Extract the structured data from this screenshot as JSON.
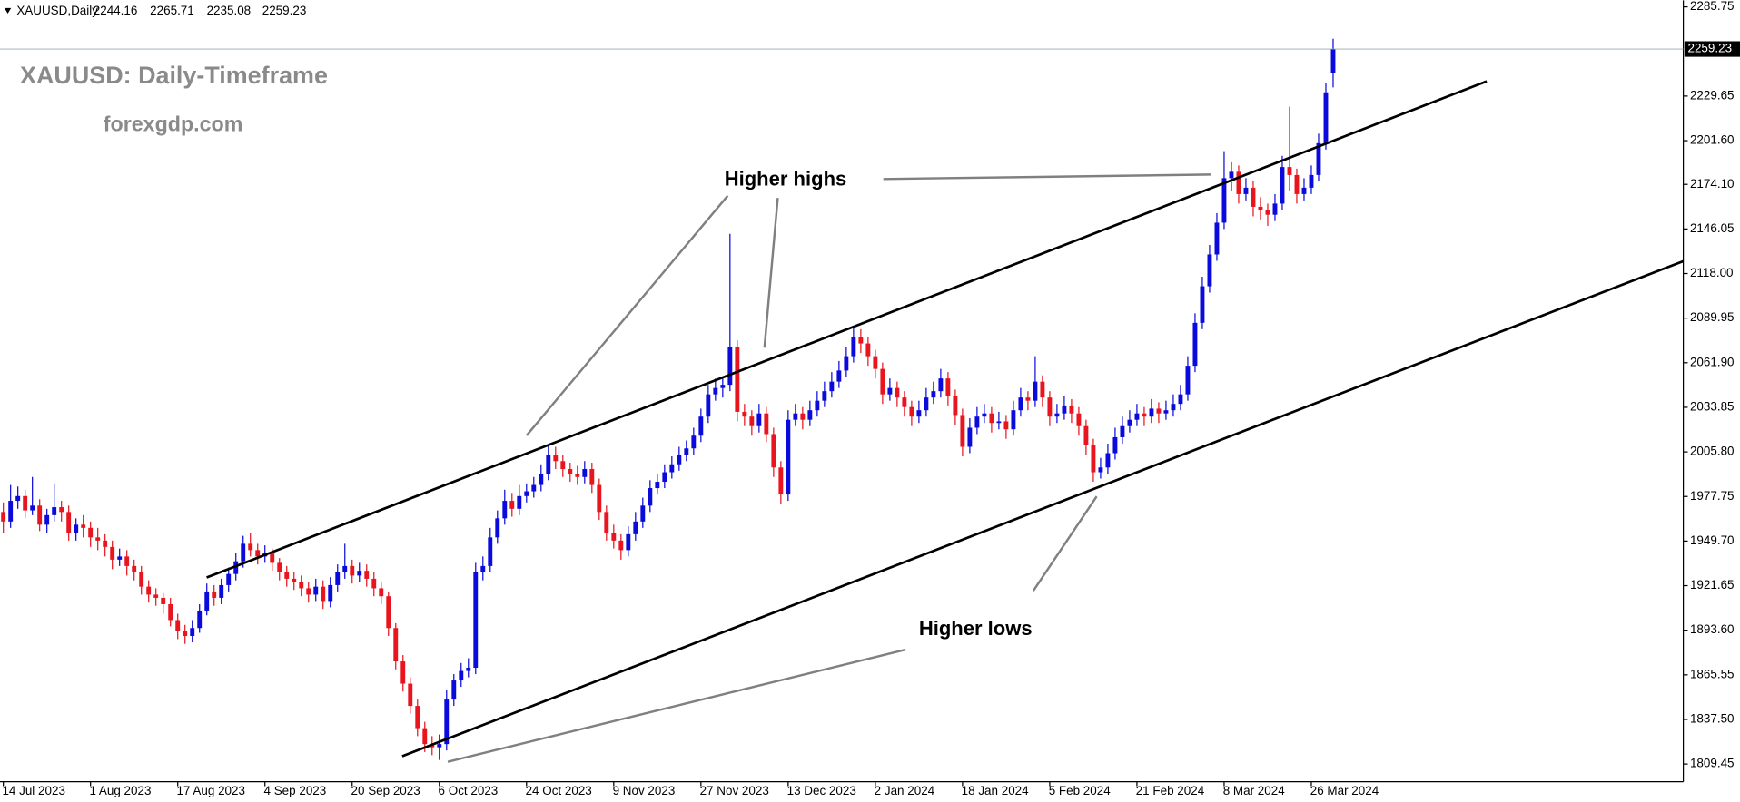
{
  "chart_data": {
    "type": "candlestick",
    "symbol": "XAUUSD,Daily",
    "title": "XAUUSD: Daily-Timeframe",
    "subtitle": "forexgdp.com",
    "annotations": [
      "Higher highs",
      "Higher lows"
    ],
    "up_color": "#0a0adc",
    "down_color": "#e8141e",
    "ylim": [
      1798.3,
      2289.9
    ],
    "yticks": [
      2285.75,
      2229.65,
      {
        "value": 2201.6,
        "label": "2201.60"
      },
      {
        "value": 2174.1,
        "label": "2174.10"
      },
      2146.05,
      {
        "value": 2118,
        "label": "2118.00"
      },
      2089.95,
      {
        "value": 2061.9,
        "label": "2061.90"
      },
      2033.85,
      {
        "value": 2005.8,
        "label": "2005.80"
      },
      1977.75,
      {
        "value": 1949.7,
        "label": "1949.70"
      },
      1921.65,
      {
        "value": 1893.6,
        "label": "1893.60"
      },
      1865.55,
      {
        "value": 1837.5,
        "label": "1837.50"
      },
      1809.45
    ],
    "categories": [
      "14 Jul 2023",
      null,
      null,
      null,
      null,
      null,
      null,
      null,
      null,
      null,
      null,
      null,
      "1 Aug 2023",
      null,
      null,
      null,
      null,
      null,
      null,
      null,
      null,
      null,
      null,
      null,
      "17 Aug 2023",
      null,
      null,
      null,
      null,
      null,
      null,
      null,
      null,
      null,
      null,
      null,
      "4 Sep 2023",
      null,
      null,
      null,
      null,
      null,
      null,
      null,
      null,
      null,
      null,
      null,
      "20 Sep 2023",
      null,
      null,
      null,
      null,
      null,
      null,
      null,
      null,
      null,
      null,
      null,
      "6 Oct 2023",
      null,
      null,
      null,
      null,
      null,
      null,
      null,
      null,
      null,
      null,
      null,
      "24 Oct 2023",
      null,
      null,
      null,
      null,
      null,
      null,
      null,
      null,
      null,
      null,
      null,
      "9 Nov 2023",
      null,
      null,
      null,
      null,
      null,
      null,
      null,
      null,
      null,
      null,
      null,
      "27 Nov 2023",
      null,
      null,
      null,
      null,
      null,
      null,
      null,
      null,
      null,
      null,
      null,
      "13 Dec 2023",
      null,
      null,
      null,
      null,
      null,
      null,
      null,
      null,
      null,
      null,
      null,
      "2 Jan 2024",
      null,
      null,
      null,
      null,
      null,
      null,
      null,
      null,
      null,
      null,
      null,
      "18 Jan 2024",
      null,
      null,
      null,
      null,
      null,
      null,
      null,
      null,
      null,
      null,
      null,
      "5 Feb 2024",
      null,
      null,
      null,
      null,
      null,
      null,
      null,
      null,
      null,
      null,
      null,
      "21 Feb 2024",
      null,
      null,
      null,
      null,
      null,
      null,
      null,
      null,
      null,
      null,
      null,
      "8 Mar 2024",
      null,
      null,
      null,
      null,
      null,
      null,
      null,
      null,
      null,
      null,
      null,
      "26 Mar 2024",
      null,
      null,
      null
    ],
    "ohlc": [
      [
        1968,
        1974,
        1955,
        1962
      ],
      [
        1962,
        1985,
        1958,
        1975
      ],
      [
        1975,
        1984,
        1970,
        1978
      ],
      [
        1978,
        1982,
        1964,
        1969
      ],
      [
        1969,
        1990,
        1966,
        1972
      ],
      [
        1972,
        1976,
        1956,
        1960
      ],
      [
        1960,
        1970,
        1955,
        1966
      ],
      [
        1966,
        1986,
        1962,
        1971
      ],
      [
        1971,
        1975,
        1962,
        1968
      ],
      [
        1968,
        1972,
        1950,
        1955
      ],
      [
        1955,
        1964,
        1950,
        1960
      ],
      [
        1960,
        1966,
        1952,
        1958
      ],
      [
        1958,
        1962,
        1946,
        1952
      ],
      [
        1952,
        1958,
        1944,
        1950
      ],
      [
        1950,
        1954,
        1940,
        1946
      ],
      [
        1946,
        1950,
        1932,
        1938
      ],
      [
        1938,
        1945,
        1934,
        1940
      ],
      [
        1940,
        1944,
        1928,
        1934
      ],
      [
        1934,
        1938,
        1925,
        1930
      ],
      [
        1930,
        1934,
        1916,
        1921
      ],
      [
        1921,
        1925,
        1911,
        1916
      ],
      [
        1916,
        1920,
        1909,
        1914
      ],
      [
        1914,
        1917,
        1904,
        1910
      ],
      [
        1910,
        1914,
        1896,
        1900
      ],
      [
        1900,
        1904,
        1888,
        1893
      ],
      [
        1893,
        1897,
        1885,
        1890
      ],
      [
        1890,
        1900,
        1886,
        1895
      ],
      [
        1895,
        1910,
        1892,
        1906
      ],
      [
        1906,
        1923,
        1903,
        1918
      ],
      [
        1918,
        1922,
        1909,
        1914
      ],
      [
        1914,
        1926,
        1910,
        1922
      ],
      [
        1922,
        1933,
        1918,
        1929
      ],
      [
        1929,
        1942,
        1925,
        1937
      ],
      [
        1937,
        1953,
        1933,
        1948
      ],
      [
        1948,
        1955,
        1940,
        1944
      ],
      [
        1944,
        1948,
        1935,
        1940
      ],
      [
        1940,
        1947,
        1936,
        1942
      ],
      [
        1942,
        1945,
        1931,
        1936
      ],
      [
        1936,
        1939,
        1925,
        1930
      ],
      [
        1930,
        1934,
        1921,
        1926
      ],
      [
        1926,
        1930,
        1919,
        1924
      ],
      [
        1924,
        1928,
        1915,
        1920
      ],
      [
        1920,
        1924,
        1911,
        1916
      ],
      [
        1916,
        1926,
        1912,
        1921
      ],
      [
        1921,
        1925,
        1907,
        1912
      ],
      [
        1912,
        1927,
        1908,
        1922
      ],
      [
        1922,
        1935,
        1918,
        1930
      ],
      [
        1930,
        1948,
        1926,
        1934
      ],
      [
        1934,
        1938,
        1923,
        1928
      ],
      [
        1928,
        1936,
        1924,
        1931
      ],
      [
        1931,
        1935,
        1921,
        1926
      ],
      [
        1926,
        1930,
        1915,
        1920
      ],
      [
        1920,
        1924,
        1910,
        1915
      ],
      [
        1915,
        1918,
        1890,
        1895
      ],
      [
        1895,
        1898,
        1869,
        1874
      ],
      [
        1874,
        1878,
        1855,
        1860
      ],
      [
        1860,
        1864,
        1841,
        1846
      ],
      [
        1846,
        1850,
        1827,
        1832
      ],
      [
        1832,
        1836,
        1817,
        1822
      ],
      [
        1822,
        1827,
        1815,
        1820
      ],
      [
        1820,
        1828,
        1812,
        1822
      ],
      [
        1822,
        1856,
        1818,
        1850
      ],
      [
        1850,
        1866,
        1846,
        1862
      ],
      [
        1862,
        1873,
        1858,
        1868
      ],
      [
        1868,
        1876,
        1864,
        1870
      ],
      [
        1870,
        1936,
        1866,
        1930
      ],
      [
        1930,
        1940,
        1925,
        1934
      ],
      [
        1934,
        1958,
        1930,
        1952
      ],
      [
        1952,
        1969,
        1948,
        1964
      ],
      [
        1964,
        1982,
        1960,
        1975
      ],
      [
        1975,
        1980,
        1965,
        1970
      ],
      [
        1970,
        1985,
        1966,
        1978
      ],
      [
        1978,
        1986,
        1974,
        1981
      ],
      [
        1981,
        1990,
        1977,
        1985
      ],
      [
        1985,
        1998,
        1981,
        1992
      ],
      [
        1992,
        2010,
        1988,
        2004
      ],
      [
        2004,
        2009,
        1995,
        2000
      ],
      [
        2000,
        2004,
        1990,
        1995
      ],
      [
        1995,
        1999,
        1987,
        1992
      ],
      [
        1992,
        1997,
        1985,
        1990
      ],
      [
        1990,
        2000,
        1986,
        1995
      ],
      [
        1995,
        1999,
        1980,
        1985
      ],
      [
        1985,
        1989,
        1963,
        1968
      ],
      [
        1968,
        1972,
        1950,
        1955
      ],
      [
        1955,
        1960,
        1945,
        1950
      ],
      [
        1950,
        1954,
        1938,
        1944
      ],
      [
        1944,
        1959,
        1940,
        1954
      ],
      [
        1954,
        1968,
        1950,
        1962
      ],
      [
        1962,
        1977,
        1958,
        1972
      ],
      [
        1972,
        1988,
        1968,
        1983
      ],
      [
        1983,
        1992,
        1979,
        1987
      ],
      [
        1987,
        1998,
        1983,
        1993
      ],
      [
        1993,
        2003,
        1989,
        1998
      ],
      [
        1998,
        2009,
        1994,
        2004
      ],
      [
        2004,
        2013,
        2000,
        2008
      ],
      [
        2008,
        2021,
        2004,
        2016
      ],
      [
        2016,
        2033,
        2012,
        2028
      ],
      [
        2028,
        2048,
        2024,
        2042
      ],
      [
        2042,
        2052,
        2038,
        2046
      ],
      [
        2046,
        2053,
        2040,
        2048
      ],
      [
        2048,
        2143,
        2044,
        2072
      ],
      [
        2072,
        2076,
        2025,
        2031
      ],
      [
        2031,
        2036,
        2022,
        2028
      ],
      [
        2028,
        2032,
        2016,
        2022
      ],
      [
        2022,
        2036,
        2018,
        2030
      ],
      [
        2030,
        2034,
        2012,
        2017
      ],
      [
        2017,
        2021,
        1990,
        1996
      ],
      [
        1996,
        2000,
        1973,
        1979
      ],
      [
        1979,
        2032,
        1975,
        2026
      ],
      [
        2026,
        2036,
        2022,
        2030
      ],
      [
        2030,
        2034,
        2020,
        2026
      ],
      [
        2026,
        2038,
        2022,
        2032
      ],
      [
        2032,
        2044,
        2028,
        2038
      ],
      [
        2038,
        2050,
        2034,
        2044
      ],
      [
        2044,
        2056,
        2040,
        2050
      ],
      [
        2050,
        2063,
        2046,
        2057
      ],
      [
        2057,
        2072,
        2053,
        2066
      ],
      [
        2066,
        2085,
        2062,
        2078
      ],
      [
        2078,
        2083,
        2068,
        2074
      ],
      [
        2074,
        2078,
        2060,
        2066
      ],
      [
        2066,
        2070,
        2052,
        2058
      ],
      [
        2058,
        2062,
        2036,
        2042
      ],
      [
        2042,
        2052,
        2038,
        2046
      ],
      [
        2046,
        2050,
        2034,
        2040
      ],
      [
        2040,
        2044,
        2028,
        2034
      ],
      [
        2034,
        2038,
        2022,
        2028
      ],
      [
        2028,
        2038,
        2024,
        2032
      ],
      [
        2032,
        2046,
        2028,
        2040
      ],
      [
        2040,
        2050,
        2036,
        2044
      ],
      [
        2044,
        2058,
        2040,
        2052
      ],
      [
        2052,
        2056,
        2035,
        2041
      ],
      [
        2041,
        2045,
        2023,
        2029
      ],
      [
        2029,
        2033,
        2003,
        2009
      ],
      [
        2009,
        2027,
        2005,
        2021
      ],
      [
        2021,
        2034,
        2017,
        2028
      ],
      [
        2028,
        2036,
        2024,
        2030
      ],
      [
        2030,
        2034,
        2018,
        2024
      ],
      [
        2024,
        2031,
        2020,
        2025
      ],
      [
        2025,
        2029,
        2014,
        2020
      ],
      [
        2020,
        2038,
        2016,
        2032
      ],
      [
        2032,
        2046,
        2028,
        2040
      ],
      [
        2040,
        2044,
        2032,
        2038
      ],
      [
        2038,
        2066,
        2034,
        2050
      ],
      [
        2050,
        2054,
        2034,
        2040
      ],
      [
        2040,
        2044,
        2022,
        2028
      ],
      [
        2028,
        2036,
        2024,
        2030
      ],
      [
        2030,
        2041,
        2026,
        2035
      ],
      [
        2035,
        2039,
        2024,
        2030
      ],
      [
        2030,
        2034,
        2016,
        2022
      ],
      [
        2022,
        2026,
        2004,
        2010
      ],
      [
        2010,
        2014,
        1987,
        1993
      ],
      [
        1993,
        2002,
        1989,
        1996
      ],
      [
        1996,
        2011,
        1992,
        2005
      ],
      [
        2005,
        2021,
        2001,
        2015
      ],
      [
        2015,
        2028,
        2011,
        2022
      ],
      [
        2022,
        2032,
        2018,
        2026
      ],
      [
        2026,
        2036,
        2022,
        2030
      ],
      [
        2030,
        2034,
        2022,
        2028
      ],
      [
        2028,
        2039,
        2024,
        2033
      ],
      [
        2033,
        2037,
        2024,
        2030
      ],
      [
        2030,
        2038,
        2026,
        2032
      ],
      [
        2032,
        2042,
        2028,
        2036
      ],
      [
        2036,
        2048,
        2032,
        2042
      ],
      [
        2042,
        2066,
        2038,
        2060
      ],
      [
        2060,
        2093,
        2056,
        2087
      ],
      [
        2087,
        2116,
        2083,
        2110
      ],
      [
        2110,
        2136,
        2106,
        2130
      ],
      [
        2130,
        2156,
        2126,
        2150
      ],
      [
        2150,
        2195,
        2146,
        2178
      ],
      [
        2178,
        2188,
        2170,
        2182
      ],
      [
        2182,
        2186,
        2162,
        2168
      ],
      [
        2168,
        2178,
        2164,
        2172
      ],
      [
        2172,
        2176,
        2154,
        2160
      ],
      [
        2160,
        2166,
        2152,
        2158
      ],
      [
        2158,
        2162,
        2148,
        2155
      ],
      [
        2155,
        2168,
        2151,
        2162
      ],
      [
        2162,
        2192,
        2158,
        2185
      ],
      [
        2185,
        2223,
        2170,
        2180
      ],
      [
        2180,
        2184,
        2162,
        2168
      ],
      [
        2168,
        2178,
        2164,
        2172
      ],
      [
        2172,
        2186,
        2168,
        2180
      ],
      [
        2180,
        2206,
        2176,
        2200
      ],
      [
        2200,
        2238,
        2196,
        2232
      ],
      [
        2244.16,
        2265.71,
        2235.08,
        2259.23
      ]
    ]
  }
}
